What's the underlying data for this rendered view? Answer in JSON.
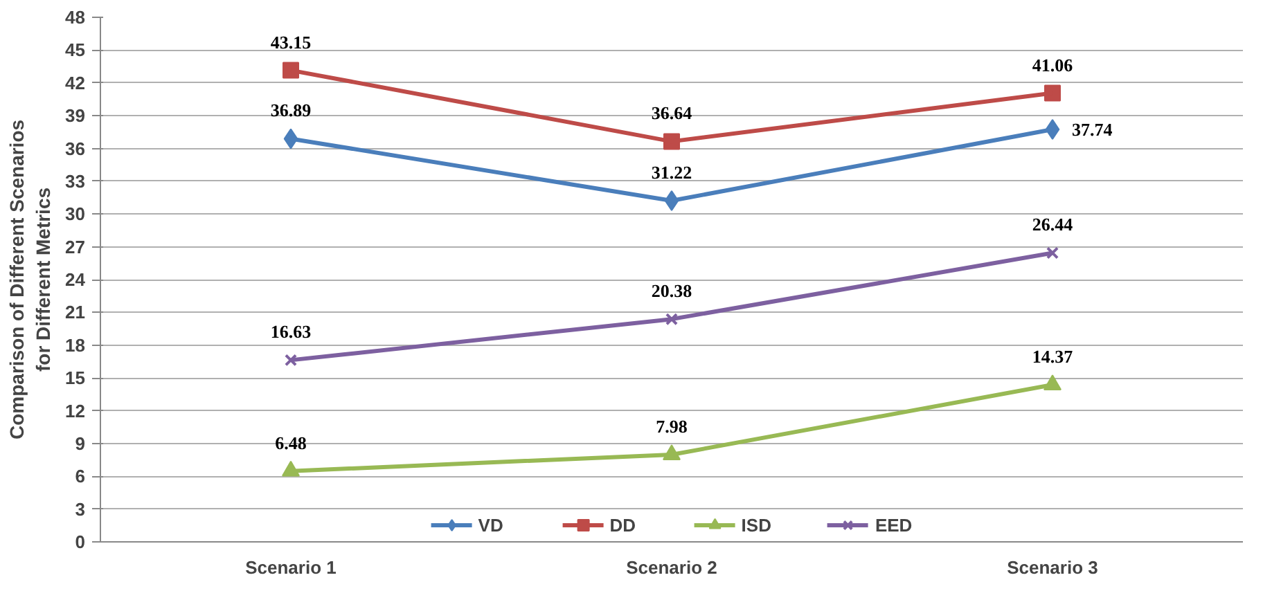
{
  "chart_data": {
    "type": "line",
    "ylabel": "Comparison of Different Scenarios\nfor Different Metrics",
    "categories": [
      "Scenario 1",
      "Scenario 2",
      "Scenario 3"
    ],
    "series": [
      {
        "name": "VD",
        "color": "#4a7ebb",
        "marker": "diamond",
        "values": [
          36.89,
          31.22,
          37.74
        ]
      },
      {
        "name": "DD",
        "color": "#be4b48",
        "marker": "square",
        "values": [
          43.15,
          36.64,
          41.06
        ]
      },
      {
        "name": "ISD",
        "color": "#98b954",
        "marker": "triangle",
        "values": [
          6.48,
          7.98,
          14.37
        ]
      },
      {
        "name": "EED",
        "color": "#7d60a0",
        "marker": "cross",
        "values": [
          16.63,
          20.38,
          26.44
        ]
      }
    ],
    "ylim": [
      0,
      48
    ],
    "yticks": [
      0,
      3,
      6,
      9,
      12,
      15,
      18,
      21,
      24,
      27,
      30,
      33,
      36,
      39,
      42,
      45,
      48
    ],
    "grid": "y",
    "legend": "bottom",
    "data_labels": true
  }
}
